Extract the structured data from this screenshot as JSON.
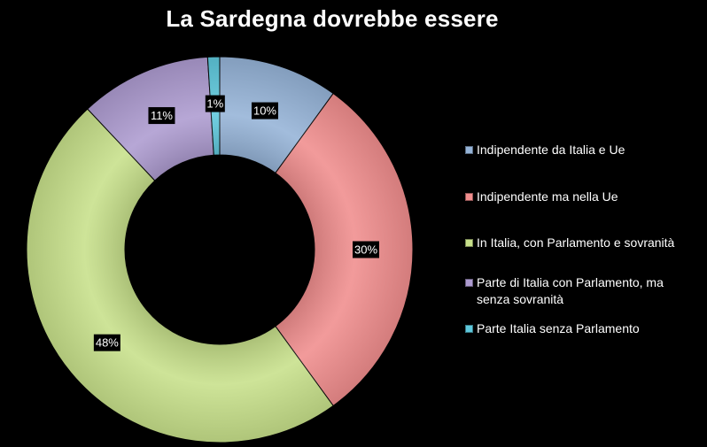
{
  "chart_data": {
    "type": "pie",
    "donut": true,
    "title": "La Sardegna dovrebbe essere",
    "legend_position": "right",
    "slices": [
      {
        "label": "Indipendente da Italia e Ue",
        "value": 10,
        "display": "10%",
        "color": "#95b3d7"
      },
      {
        "label": "Indipendente ma nella Ue",
        "value": 30,
        "display": "30%",
        "color": "#f08d8d"
      },
      {
        "label": "In Italia, con Parlamento e sovranità",
        "value": 48,
        "display": "48%",
        "color": "#c7e08a"
      },
      {
        "label": "Parte di Italia con Parlamento, ma senza sovranità",
        "value": 11,
        "display": "11%",
        "color": "#ad9bd0"
      },
      {
        "label": "Parte Italia senza Parlamento",
        "value": 1,
        "display": "1%",
        "color": "#5ec8dc"
      }
    ]
  }
}
